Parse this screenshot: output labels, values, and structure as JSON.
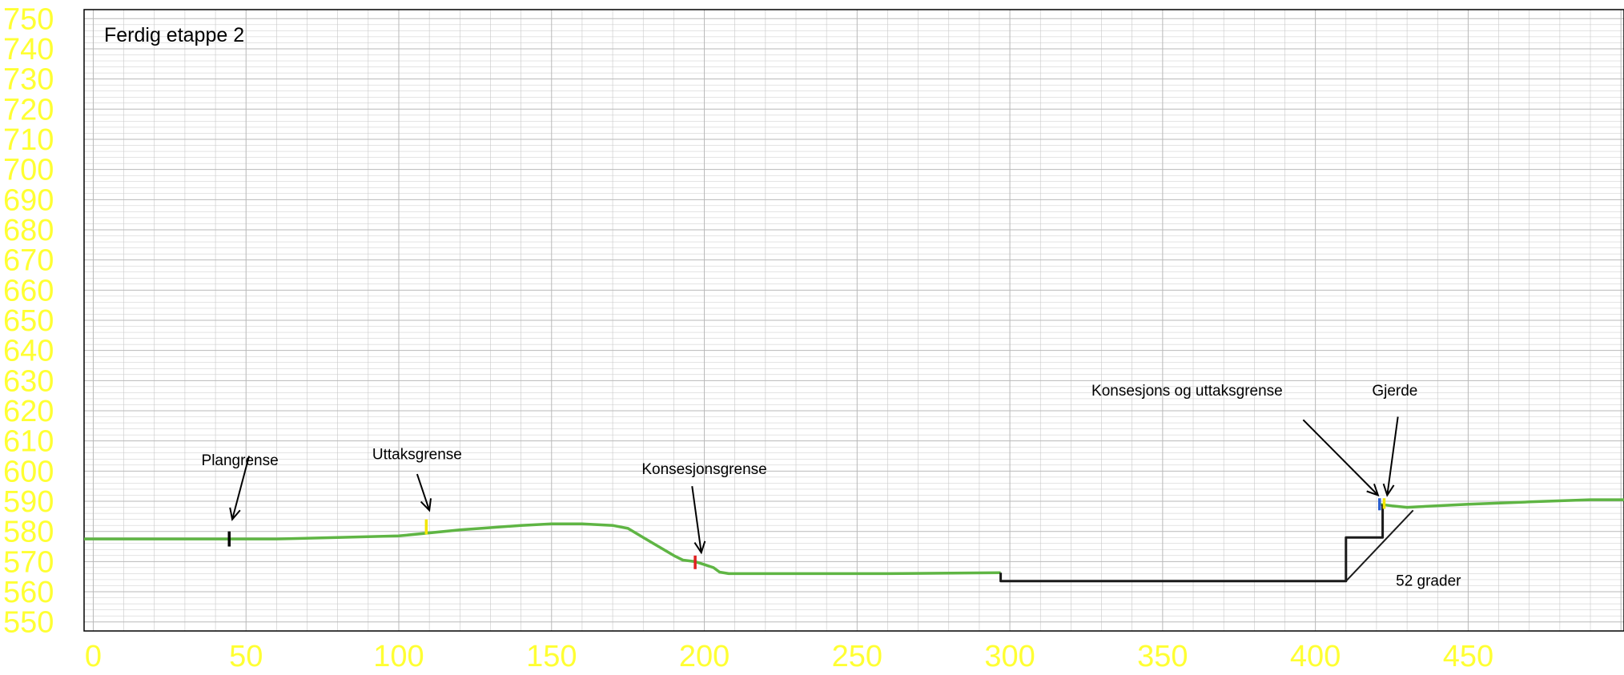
{
  "chart_data": {
    "type": "line",
    "title": "Ferdig etappe 2",
    "xlabel": "",
    "ylabel": "",
    "xlim": [
      -3,
      501
    ],
    "ylim": [
      547,
      753
    ],
    "xticks": [
      0,
      50,
      100,
      150,
      200,
      250,
      300,
      350,
      400,
      450
    ],
    "yticks": [
      550,
      560,
      570,
      580,
      590,
      600,
      610,
      620,
      630,
      640,
      650,
      660,
      670,
      680,
      690,
      700,
      710,
      720,
      730,
      740,
      750
    ],
    "grid": true,
    "colors": {
      "terrain": "#5fb544",
      "excavation": "#1a1a1a",
      "ticks": "#ffff33",
      "grid": "#c8c8c8",
      "marker_plangrense": "#000000",
      "marker_uttaksgrense": "#f2e600",
      "marker_konsesjonsgrense": "#e02020",
      "marker_konsesjon_uttak": "#2a5fd0",
      "marker_gjerde": "#f2e600"
    },
    "series": [
      {
        "key": "terrain_left",
        "x": [
          -3,
          20,
          40,
          60,
          80,
          100,
          120,
          140,
          150,
          160,
          170,
          175,
          180,
          185,
          190,
          193,
          197,
          200,
          203,
          205,
          208,
          220,
          260,
          297
        ],
        "y": [
          577.5,
          577.5,
          577.5,
          577.5,
          578,
          578.5,
          580.5,
          582,
          582.5,
          582.5,
          582,
          581,
          578,
          575,
          572,
          570.5,
          570,
          569,
          568,
          566.5,
          566,
          566,
          566,
          566.3
        ]
      },
      {
        "key": "terrain_right",
        "x": [
          421,
          425,
          430,
          450,
          470,
          490,
          501
        ],
        "y": [
          589,
          588.5,
          588,
          589,
          589.8,
          590.5,
          590.5
        ]
      },
      {
        "key": "excavation",
        "x": [
          297,
          297,
          410,
          410,
          422,
          422
        ],
        "y": [
          566.3,
          563.5,
          563.5,
          578,
          578,
          589
        ]
      },
      {
        "key": "slope_line",
        "x": [
          410,
          432
        ],
        "y": [
          563.5,
          587
        ]
      }
    ],
    "markers": [
      {
        "key": "marker_plangrense",
        "x": 44.5,
        "y0": 575,
        "y1": 580
      },
      {
        "key": "marker_uttaksgrense",
        "x": 109,
        "y0": 579,
        "y1": 584
      },
      {
        "key": "marker_konsesjonsgrense",
        "x": 197,
        "y0": 567.5,
        "y1": 572
      },
      {
        "key": "marker_konsesjon_uttak",
        "x": 421,
        "y0": 587,
        "y1": 591
      },
      {
        "key": "marker_gjerde",
        "x": 422.5,
        "y0": 587.5,
        "y1": 591
      }
    ],
    "annotations": [
      {
        "key": "plangrense",
        "text": "Plangrense",
        "tx": 48,
        "ty": 602,
        "ax": [
          51,
          605
        ],
        "ah": [
          45.5,
          584
        ]
      },
      {
        "key": "uttaksgrense",
        "text": "Uttaksgrense",
        "tx": 106,
        "ty": 604,
        "ax": [
          106,
          599
        ],
        "ah": [
          110,
          587
        ]
      },
      {
        "key": "konsesjonsgrense",
        "text": "Konsesjonsgrense",
        "tx": 200,
        "ty": 599,
        "ax": [
          196,
          595
        ],
        "ah": [
          199,
          573
        ]
      },
      {
        "key": "konsesjon_uttak",
        "text": "Konsesjons og uttaksgrense",
        "tx": 358,
        "ty": 625,
        "ax": [
          396,
          617
        ],
        "ah": [
          420.5,
          592
        ]
      },
      {
        "key": "gjerde",
        "text": "Gjerde",
        "tx": 426,
        "ty": 625,
        "ax": [
          427,
          618
        ],
        "ah": [
          423.5,
          592
        ]
      },
      {
        "key": "grader",
        "text": "52 grader",
        "tx": 437,
        "ty": 562,
        "ax": null,
        "ah": null
      }
    ]
  }
}
